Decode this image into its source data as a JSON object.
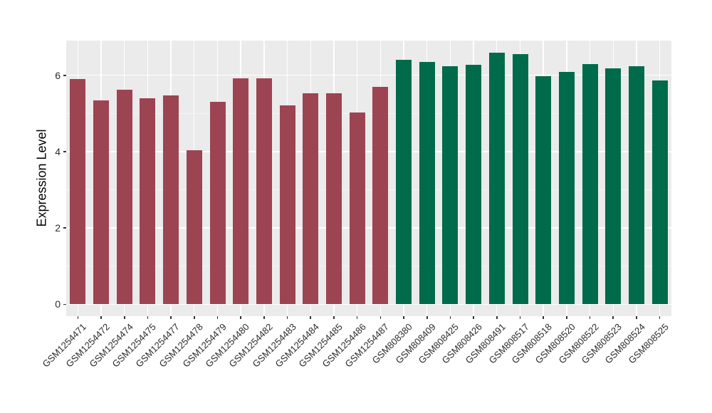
{
  "chart_data": {
    "type": "bar",
    "title": "",
    "xlabel": "",
    "ylabel": "Expression Level",
    "ylim": [
      0,
      6.91
    ],
    "ylim_panel": [
      -0.31,
      6.91
    ],
    "yticks": [
      0,
      2,
      4,
      6
    ],
    "yticks_minor": [
      1,
      3,
      5
    ],
    "grid": "white major and minor gridlines on gray panel",
    "legend_position": "none",
    "palette": {
      "group1": "#9D4452",
      "group2": "#006B4A"
    },
    "style": {
      "figure_bg": "#FFFFFF",
      "panel_bg": "#EBEBEB",
      "grid_major_color": "#FFFFFF",
      "grid_minor_color": "#F5F5F5",
      "tick_mark_color": "#333333",
      "axis_text_color": "#2B2B2B",
      "axis_title_color": "#000000"
    },
    "bars": [
      {
        "label": "GSM1254471",
        "value": 5.91,
        "group": "group1"
      },
      {
        "label": "GSM1254472",
        "value": 5.34,
        "group": "group1"
      },
      {
        "label": "GSM1254474",
        "value": 5.63,
        "group": "group1"
      },
      {
        "label": "GSM1254475",
        "value": 5.4,
        "group": "group1"
      },
      {
        "label": "GSM1254477",
        "value": 5.47,
        "group": "group1"
      },
      {
        "label": "GSM1254478",
        "value": 4.04,
        "group": "group1"
      },
      {
        "label": "GSM1254479",
        "value": 5.3,
        "group": "group1"
      },
      {
        "label": "GSM1254480",
        "value": 5.92,
        "group": "group1"
      },
      {
        "label": "GSM1254482",
        "value": 5.92,
        "group": "group1"
      },
      {
        "label": "GSM1254483",
        "value": 5.22,
        "group": "group1"
      },
      {
        "label": "GSM1254484",
        "value": 5.53,
        "group": "group1"
      },
      {
        "label": "GSM1254485",
        "value": 5.53,
        "group": "group1"
      },
      {
        "label": "GSM1254486",
        "value": 5.02,
        "group": "group1"
      },
      {
        "label": "GSM1254487",
        "value": 5.7,
        "group": "group1"
      },
      {
        "label": "GSM808380",
        "value": 6.4,
        "group": "group2"
      },
      {
        "label": "GSM808409",
        "value": 6.35,
        "group": "group2"
      },
      {
        "label": "GSM808425",
        "value": 6.24,
        "group": "group2"
      },
      {
        "label": "GSM808426",
        "value": 6.28,
        "group": "group2"
      },
      {
        "label": "GSM808491",
        "value": 6.59,
        "group": "group2"
      },
      {
        "label": "GSM808517",
        "value": 6.56,
        "group": "group2"
      },
      {
        "label": "GSM808518",
        "value": 5.98,
        "group": "group2"
      },
      {
        "label": "GSM808520",
        "value": 6.09,
        "group": "group2"
      },
      {
        "label": "GSM808522",
        "value": 6.3,
        "group": "group2"
      },
      {
        "label": "GSM808523",
        "value": 6.19,
        "group": "group2"
      },
      {
        "label": "GSM808524",
        "value": 6.24,
        "group": "group2"
      },
      {
        "label": "GSM808525",
        "value": 5.87,
        "group": "group2"
      }
    ]
  }
}
